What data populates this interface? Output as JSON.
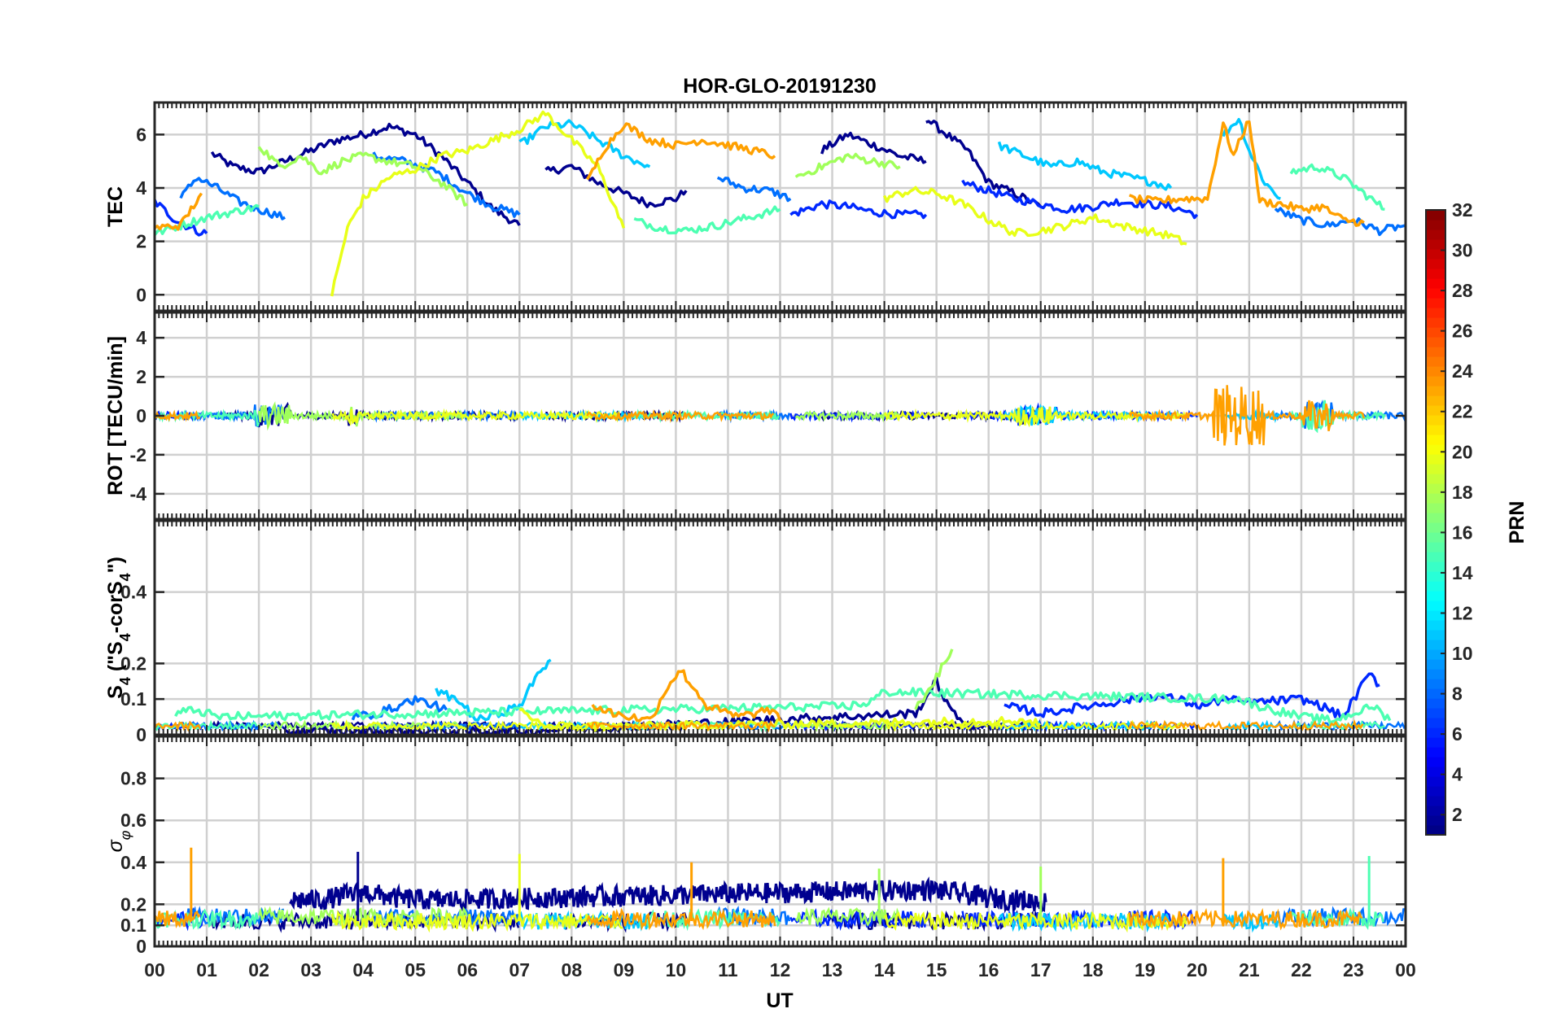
{
  "chart_data": {
    "type": "line",
    "title": "HOR-GLO-20191230",
    "xlabel": "UT",
    "x_ticks": [
      "00",
      "01",
      "02",
      "03",
      "04",
      "05",
      "06",
      "07",
      "08",
      "09",
      "10",
      "11",
      "12",
      "13",
      "14",
      "15",
      "16",
      "17",
      "18",
      "19",
      "20",
      "21",
      "22",
      "23",
      "00"
    ],
    "xlim": [
      0,
      24
    ],
    "panels": [
      {
        "id": "tec",
        "ylabel": "TEC",
        "ylim": [
          -0.6,
          7.2
        ],
        "yticks": [
          0,
          2,
          4,
          6
        ],
        "yticklabels": [
          "0",
          "2",
          "4",
          "6"
        ]
      },
      {
        "id": "rot",
        "ylabel": "ROT [TECU/min]",
        "ylim": [
          -5.3,
          5.3
        ],
        "yticks": [
          -4,
          -2,
          0,
          2,
          4
        ],
        "yticklabels": [
          "-4",
          "-2",
          "0",
          "2",
          "4"
        ]
      },
      {
        "id": "s4",
        "ylabel": "S4 (\"S4-corS4\")",
        "ylabel_main": "S",
        "ylabel_sub1": "4",
        "ylabel_mid": " (\"S",
        "ylabel_sub2": "4",
        "ylabel_mid2": "-corS",
        "ylabel_sub3": "4",
        "ylabel_end": "\")",
        "ylim": [
          0,
          0.6
        ],
        "yticks": [
          0,
          0.1,
          0.2,
          0.4
        ],
        "yticklabels": [
          "0",
          "0.1",
          "0.2",
          "0.4"
        ]
      },
      {
        "id": "sigma",
        "ylabel": "σφ",
        "ylabel_main": "σ",
        "ylabel_sub": "φ",
        "ylim": [
          0,
          1.0
        ],
        "yticks": [
          0,
          0.1,
          0.2,
          0.4,
          0.6,
          0.8
        ],
        "yticklabels": [
          "0",
          "0.1",
          "0.2",
          "0.4",
          "0.6",
          "0.8"
        ]
      }
    ],
    "colorbar": {
      "label": "PRN",
      "range": [
        1,
        32
      ],
      "ticks": [
        2,
        4,
        6,
        8,
        10,
        12,
        14,
        16,
        18,
        20,
        22,
        24,
        26,
        28,
        30,
        32
      ],
      "colormap": "jet"
    },
    "series": [
      {
        "name": "PRN 1",
        "prn": 1,
        "color": "#00008f",
        "tec": [
          [
            1.1,
            5.3
          ],
          [
            1.5,
            4.8
          ],
          [
            2.0,
            4.6
          ],
          [
            2.5,
            5.0
          ],
          [
            3.0,
            5.4
          ],
          [
            3.5,
            5.8
          ],
          [
            4.0,
            6.0
          ],
          [
            4.5,
            6.3
          ],
          [
            5.0,
            6.0
          ],
          [
            5.5,
            5.2
          ],
          [
            6.0,
            4.2
          ],
          [
            6.5,
            3.2
          ],
          [
            7.0,
            2.6
          ]
        ],
        "tec2": [
          [
            7.5,
            4.6
          ],
          [
            8.0,
            4.8
          ],
          [
            8.5,
            4.2
          ],
          [
            9.0,
            3.8
          ],
          [
            9.5,
            3.4
          ],
          [
            10.0,
            3.6
          ],
          [
            10.2,
            3.9
          ]
        ],
        "tec3": [
          [
            12.8,
            5.4
          ],
          [
            13.3,
            6.0
          ],
          [
            13.8,
            5.6
          ],
          [
            14.3,
            5.2
          ],
          [
            14.8,
            5.0
          ]
        ],
        "tec4": [
          [
            14.8,
            6.6
          ],
          [
            15.2,
            6.0
          ],
          [
            15.6,
            5.4
          ],
          [
            16.0,
            4.2
          ],
          [
            16.5,
            3.8
          ],
          [
            17.0,
            3.3
          ]
        ],
        "s4": [
          [
            2.5,
            0.01
          ],
          [
            3.0,
            0.01
          ],
          [
            4.0,
            0.01
          ],
          [
            6.5,
            0.01
          ],
          [
            7.0,
            0.01
          ],
          [
            14.6,
            0.06
          ],
          [
            15.0,
            0.15
          ],
          [
            15.3,
            0.06
          ],
          [
            15.7,
            0.02
          ]
        ],
        "sigma_block": [
          [
            2.6,
            0.22
          ],
          [
            3.2,
            0.22
          ],
          [
            4.0,
            0.26
          ],
          [
            4.6,
            0.23
          ],
          [
            5.4,
            0.22
          ],
          [
            14.9,
            0.27
          ],
          [
            15.5,
            0.25
          ],
          [
            16.0,
            0.23
          ],
          [
            16.6,
            0.22
          ],
          [
            17.1,
            0.21
          ]
        ]
      },
      {
        "name": "PRN 5",
        "prn": 5,
        "color": "#0028ff",
        "tec": [
          [
            0.0,
            3.5
          ],
          [
            0.4,
            2.8
          ],
          [
            0.8,
            2.4
          ],
          [
            1.0,
            2.3
          ]
        ],
        "tec2": [
          [
            12.2,
            3.0
          ],
          [
            12.8,
            3.4
          ],
          [
            13.3,
            3.3
          ],
          [
            13.8,
            3.1
          ],
          [
            14.3,
            3.0
          ],
          [
            14.8,
            3.0
          ]
        ],
        "tec3": [
          [
            15.5,
            4.2
          ],
          [
            16.0,
            3.9
          ],
          [
            16.5,
            3.6
          ],
          [
            17.0,
            3.4
          ],
          [
            17.5,
            3.2
          ],
          [
            18.0,
            3.3
          ],
          [
            18.5,
            3.5
          ],
          [
            19.0,
            3.4
          ],
          [
            19.5,
            3.3
          ],
          [
            20.0,
            3.0
          ]
        ],
        "s4": [
          [
            16.3,
            0.08
          ],
          [
            16.7,
            0.07
          ],
          [
            17.0,
            0.06
          ],
          [
            19.2,
            0.11
          ],
          [
            19.6,
            0.1
          ],
          [
            20.1,
            0.08
          ],
          [
            20.5,
            0.1
          ],
          [
            21.0,
            0.09
          ],
          [
            22.0,
            0.1
          ],
          [
            22.4,
            0.08
          ],
          [
            22.8,
            0.05
          ],
          [
            23.3,
            0.17
          ],
          [
            23.5,
            0.14
          ]
        ]
      },
      {
        "name": "PRN 8",
        "prn": 8,
        "color": "#0070ff",
        "tec": [
          [
            0.5,
            3.6
          ],
          [
            0.8,
            4.4
          ],
          [
            1.2,
            4.0
          ],
          [
            1.6,
            3.5
          ],
          [
            2.0,
            3.2
          ],
          [
            2.5,
            2.9
          ]
        ],
        "tec2": [
          [
            4.2,
            5.2
          ],
          [
            4.8,
            5.0
          ],
          [
            5.4,
            4.6
          ],
          [
            6.0,
            3.8
          ],
          [
            6.5,
            3.3
          ],
          [
            7.0,
            3.0
          ]
        ],
        "tec3": [
          [
            10.8,
            4.4
          ],
          [
            11.3,
            4.0
          ],
          [
            11.8,
            3.9
          ],
          [
            12.2,
            3.6
          ]
        ],
        "tec4": [
          [
            21.5,
            3.2
          ],
          [
            22.0,
            2.8
          ],
          [
            22.5,
            2.6
          ],
          [
            23.0,
            2.8
          ],
          [
            23.5,
            2.4
          ],
          [
            24.0,
            2.6
          ]
        ],
        "s4": [
          [
            3.8,
            0.05
          ],
          [
            4.3,
            0.06
          ],
          [
            5.0,
            0.1
          ],
          [
            5.6,
            0.07
          ]
        ]
      },
      {
        "name": "PRN 12",
        "prn": 12,
        "color": "#00c8ff",
        "tec": [
          [
            7.0,
            5.6
          ],
          [
            7.5,
            6.3
          ],
          [
            8.0,
            6.4
          ],
          [
            8.5,
            5.8
          ],
          [
            9.0,
            5.2
          ],
          [
            9.5,
            4.8
          ]
        ],
        "tec2": [
          [
            16.2,
            5.6
          ],
          [
            16.7,
            5.2
          ],
          [
            17.2,
            4.8
          ],
          [
            17.7,
            5.0
          ],
          [
            18.2,
            4.6
          ],
          [
            18.7,
            4.4
          ],
          [
            19.2,
            4.2
          ],
          [
            19.5,
            4.0
          ]
        ],
        "tec3": [
          [
            20.5,
            6.0
          ],
          [
            20.8,
            6.6
          ],
          [
            21.0,
            5.4
          ],
          [
            21.3,
            4.2
          ],
          [
            21.6,
            3.6
          ]
        ],
        "s4": [
          [
            5.4,
            0.12
          ],
          [
            5.8,
            0.1
          ],
          [
            6.2,
            0.04
          ],
          [
            7.0,
            0.08
          ],
          [
            7.4,
            0.18
          ],
          [
            7.6,
            0.21
          ]
        ]
      },
      {
        "name": "PRN 15",
        "prn": 15,
        "color": "#4dffb2",
        "tec": [
          [
            0.0,
            2.3
          ],
          [
            0.5,
            2.6
          ],
          [
            1.0,
            2.9
          ],
          [
            1.5,
            3.1
          ],
          [
            2.0,
            3.3
          ]
        ],
        "tec2": [
          [
            9.2,
            2.8
          ],
          [
            9.7,
            2.5
          ],
          [
            10.2,
            2.4
          ],
          [
            10.8,
            2.6
          ],
          [
            11.4,
            2.9
          ],
          [
            12.0,
            3.2
          ]
        ],
        "tec3": [
          [
            21.8,
            4.6
          ],
          [
            22.3,
            4.8
          ],
          [
            22.8,
            4.4
          ],
          [
            23.2,
            3.8
          ],
          [
            23.6,
            3.2
          ]
        ],
        "s4": [
          [
            0.4,
            0.06
          ],
          [
            0.8,
            0.07
          ],
          [
            1.2,
            0.05
          ],
          [
            13.3,
            0.08
          ],
          [
            13.7,
            0.09
          ],
          [
            14.0,
            0.12
          ],
          [
            20.8,
            0.1
          ],
          [
            21.2,
            0.08
          ],
          [
            22.0,
            0.05
          ],
          [
            22.6,
            0.04
          ],
          [
            23.4,
            0.08
          ],
          [
            23.7,
            0.04
          ]
        ]
      },
      {
        "name": "PRN 17",
        "prn": 17,
        "color": "#a0ff5a",
        "tec": [
          [
            2.0,
            5.6
          ],
          [
            2.4,
            4.8
          ],
          [
            2.8,
            5.2
          ],
          [
            3.2,
            4.6
          ],
          [
            3.6,
            5.0
          ],
          [
            4.0,
            5.2
          ],
          [
            4.5,
            5.0
          ],
          [
            5.0,
            4.8
          ],
          [
            5.5,
            4.2
          ],
          [
            6.0,
            3.4
          ]
        ],
        "tec2": [
          [
            12.3,
            4.4
          ],
          [
            12.8,
            4.8
          ],
          [
            13.3,
            5.2
          ],
          [
            13.8,
            5.0
          ],
          [
            14.3,
            4.8
          ]
        ],
        "s4": [
          [
            14.6,
            0.07
          ],
          [
            15.0,
            0.16
          ],
          [
            15.3,
            0.24
          ]
        ]
      },
      {
        "name": "PRN 19",
        "prn": 19,
        "color": "#e8ff18",
        "tec": [
          [
            3.4,
            0.0
          ],
          [
            3.7,
            2.5
          ],
          [
            4.0,
            3.6
          ],
          [
            4.5,
            4.4
          ],
          [
            5.0,
            4.7
          ],
          [
            5.5,
            5.2
          ],
          [
            6.0,
            5.4
          ],
          [
            6.5,
            5.8
          ],
          [
            7.0,
            6.2
          ],
          [
            7.5,
            6.8
          ],
          [
            8.0,
            5.8
          ],
          [
            8.5,
            4.8
          ],
          [
            9.0,
            2.5
          ]
        ],
        "tec2": [
          [
            14.0,
            3.6
          ],
          [
            14.5,
            3.9
          ],
          [
            15.0,
            3.8
          ],
          [
            15.5,
            3.4
          ],
          [
            16.0,
            2.8
          ],
          [
            16.5,
            2.3
          ],
          [
            17.0,
            2.4
          ],
          [
            17.5,
            2.6
          ],
          [
            18.0,
            2.9
          ],
          [
            18.5,
            2.6
          ],
          [
            19.0,
            2.4
          ],
          [
            19.5,
            2.2
          ],
          [
            19.8,
            1.9
          ]
        ],
        "s4": [
          [
            7.0,
            0.07
          ],
          [
            7.3,
            0.04
          ],
          [
            7.6,
            0.02
          ],
          [
            16.7,
            0.04
          ],
          [
            17.0,
            0.03
          ]
        ]
      },
      {
        "name": "PRN 22",
        "prn": 22,
        "color": "#ffa000",
        "tec": [
          [
            0.0,
            2.5
          ],
          [
            0.5,
            2.6
          ],
          [
            0.9,
            3.8
          ]
        ],
        "tec2": [
          [
            8.3,
            4.2
          ],
          [
            8.6,
            5.4
          ],
          [
            9.0,
            6.4
          ],
          [
            9.5,
            5.8
          ],
          [
            10.0,
            5.6
          ],
          [
            10.5,
            5.8
          ],
          [
            11.0,
            5.6
          ],
          [
            11.5,
            5.4
          ],
          [
            11.9,
            5.2
          ]
        ],
        "tec3": [
          [
            18.7,
            3.6
          ],
          [
            19.2,
            3.5
          ],
          [
            19.7,
            3.6
          ],
          [
            20.2,
            3.6
          ],
          [
            20.5,
            6.4
          ],
          [
            20.7,
            5.2
          ],
          [
            21.0,
            6.6
          ],
          [
            21.2,
            3.5
          ],
          [
            21.6,
            3.4
          ],
          [
            22.0,
            3.2
          ],
          [
            22.4,
            3.3
          ],
          [
            22.8,
            2.8
          ],
          [
            23.2,
            2.7
          ]
        ],
        "s4": [
          [
            8.4,
            0.08
          ],
          [
            8.8,
            0.06
          ],
          [
            9.5,
            0.04
          ],
          [
            9.9,
            0.15
          ],
          [
            10.1,
            0.18
          ],
          [
            10.4,
            0.12
          ],
          [
            10.6,
            0.08
          ],
          [
            11.2,
            0.05
          ],
          [
            11.8,
            0.07
          ],
          [
            12.0,
            0.04
          ]
        ]
      }
    ]
  }
}
